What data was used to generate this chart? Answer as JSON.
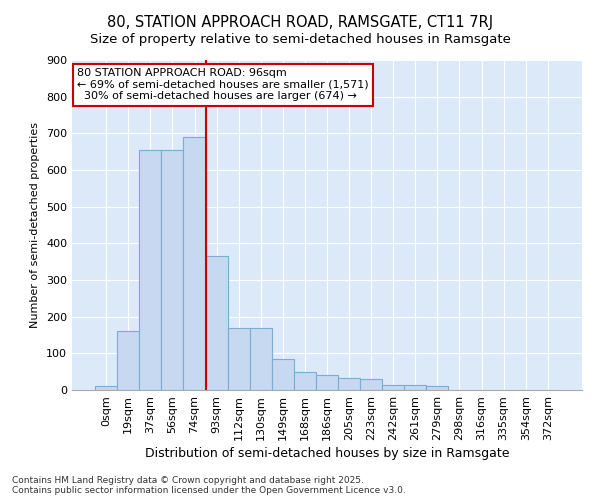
{
  "title1": "80, STATION APPROACH ROAD, RAMSGATE, CT11 7RJ",
  "title2": "Size of property relative to semi-detached houses in Ramsgate",
  "xlabel": "Distribution of semi-detached houses by size in Ramsgate",
  "ylabel": "Number of semi-detached properties",
  "bin_labels": [
    "0sqm",
    "19sqm",
    "37sqm",
    "56sqm",
    "74sqm",
    "93sqm",
    "112sqm",
    "130sqm",
    "149sqm",
    "168sqm",
    "186sqm",
    "205sqm",
    "223sqm",
    "242sqm",
    "261sqm",
    "279sqm",
    "298sqm",
    "316sqm",
    "335sqm",
    "354sqm",
    "372sqm"
  ],
  "bar_heights": [
    10,
    160,
    655,
    655,
    690,
    365,
    170,
    170,
    85,
    50,
    40,
    32,
    30,
    14,
    14,
    10,
    0,
    0,
    0,
    0,
    0
  ],
  "bar_color": "#c6d9f0",
  "bar_edgecolor": "#7aadd4",
  "vline_color": "#cc0000",
  "annotation_text": "80 STATION APPROACH ROAD: 96sqm\n← 69% of semi-detached houses are smaller (1,571)\n  30% of semi-detached houses are larger (674) →",
  "annotation_box_color": "white",
  "annotation_box_edgecolor": "#cc0000",
  "ylim": [
    0,
    900
  ],
  "yticks": [
    0,
    100,
    200,
    300,
    400,
    500,
    600,
    700,
    800,
    900
  ],
  "fig_background": "#ffffff",
  "plot_bg_color": "#dce9f8",
  "footer_text": "Contains HM Land Registry data © Crown copyright and database right 2025.\nContains public sector information licensed under the Open Government Licence v3.0.",
  "title1_fontsize": 10.5,
  "title2_fontsize": 9.5,
  "xlabel_fontsize": 9,
  "ylabel_fontsize": 8,
  "tick_fontsize": 8,
  "annotation_fontsize": 8,
  "footer_fontsize": 6.5,
  "vline_x_index": 5
}
